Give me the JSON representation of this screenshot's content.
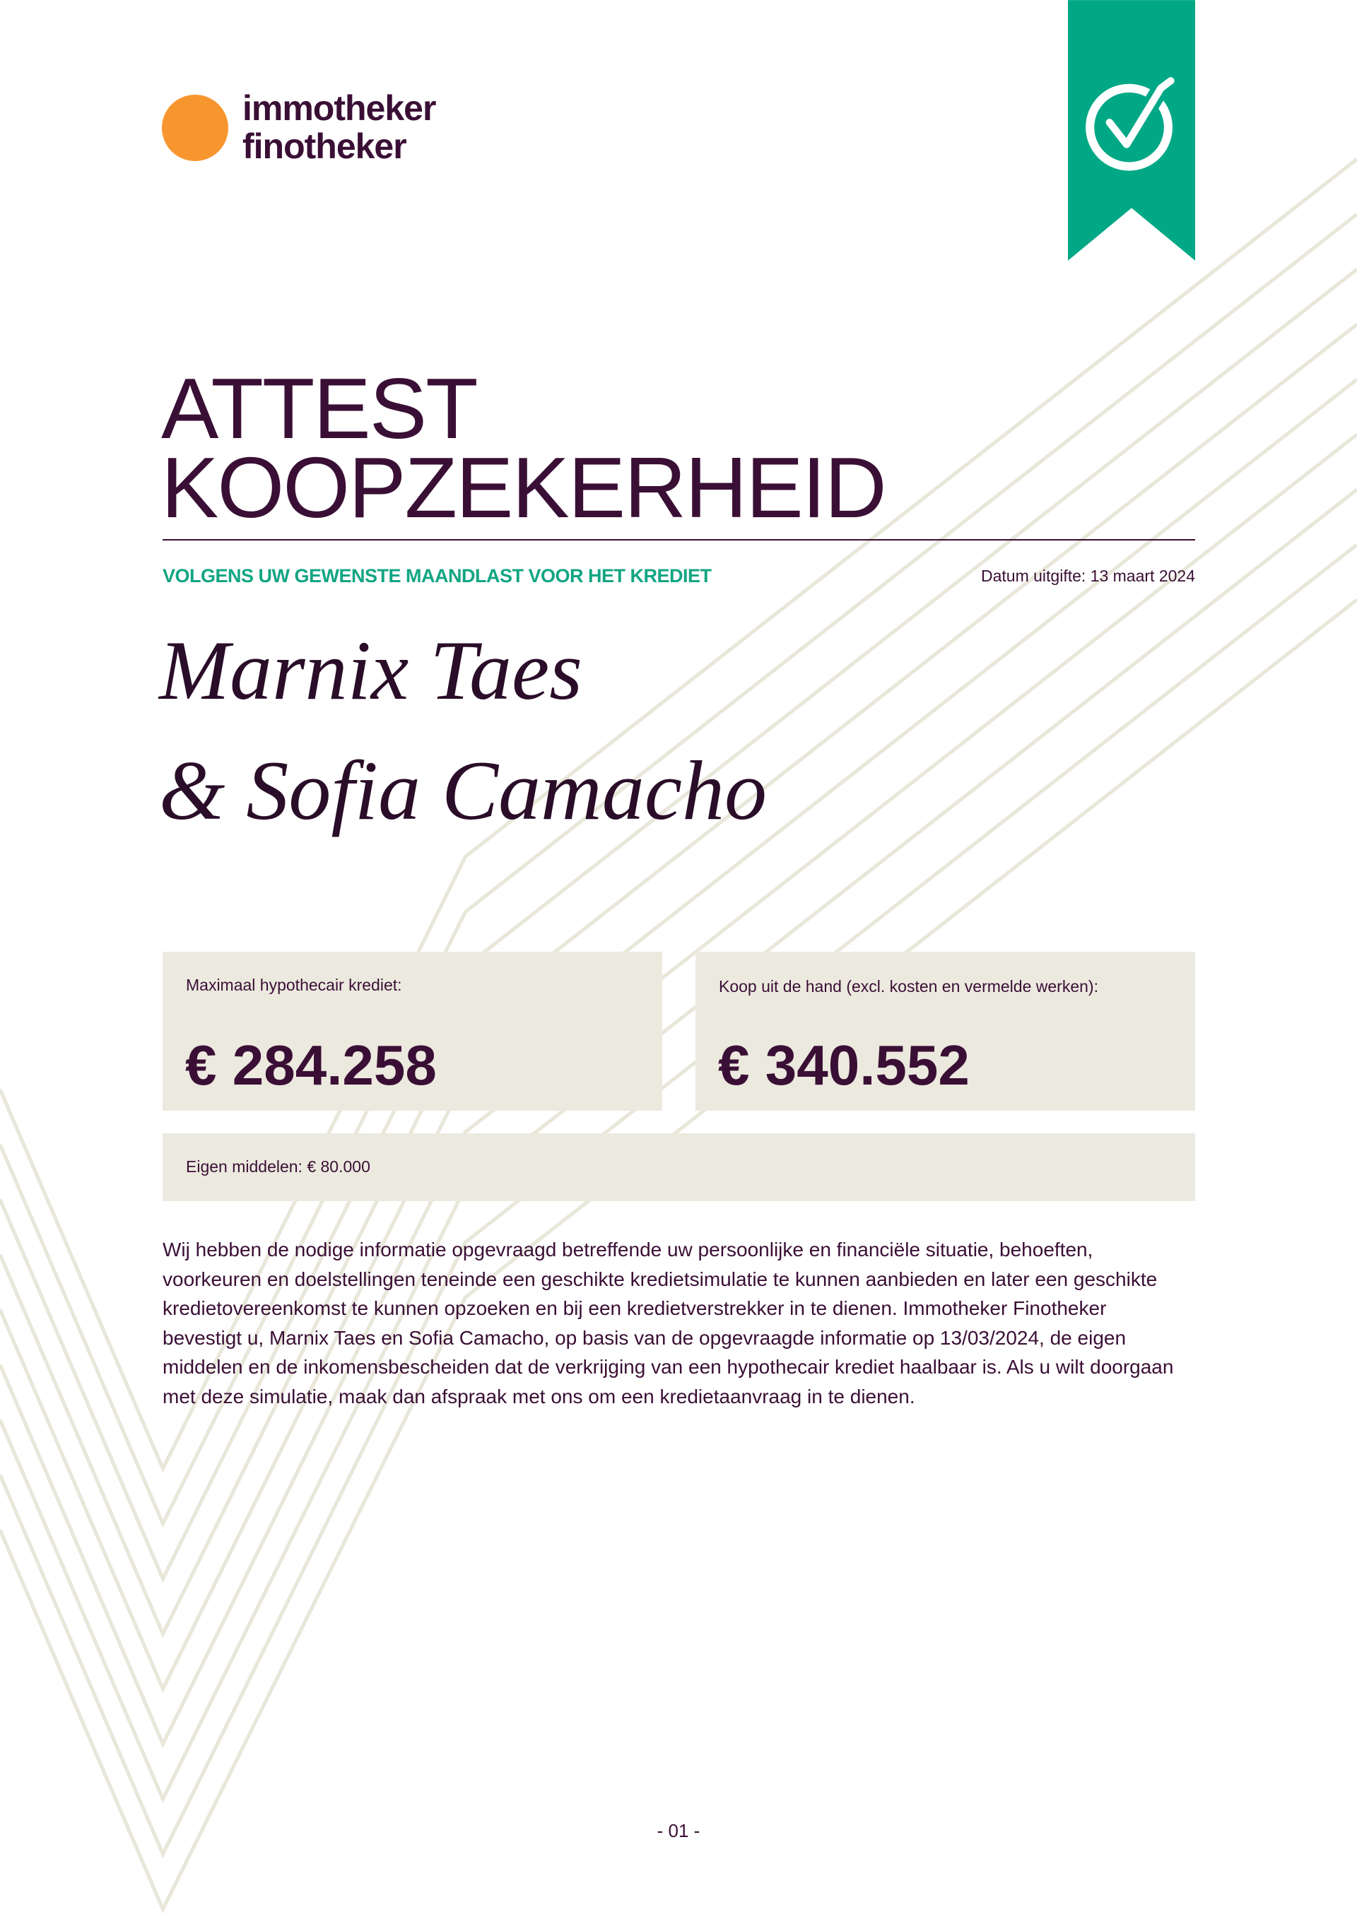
{
  "logo": {
    "line1": "immotheker",
    "line2": "finotheker",
    "circle_color": "#f7962f"
  },
  "badge": {
    "icon": "check-circle-icon",
    "color": "#00a886"
  },
  "title": {
    "line1": "ATTEST",
    "line2": "KOOPZEKERHEID"
  },
  "subtitle": "VOLGENS UW GEWENSTE MAANDLAST VOOR HET KREDIET",
  "issue_date": "Datum uitgifte: 13 maart 2024",
  "signature": {
    "line1": "Marnix Taes",
    "line2": "& Sofia Camacho"
  },
  "boxes": {
    "max_credit": {
      "label": "Maximaal hypothecair krediet:",
      "value": "€ 284.258"
    },
    "purchase": {
      "label": "Koop uit de hand (excl. kosten en vermelde werken):",
      "value": "€ 340.552"
    },
    "own_funds": {
      "label": "Eigen middelen: € 80.000"
    }
  },
  "paragraph": "Wij hebben de nodige informatie opgevraagd betreffende uw persoonlijke en financiële situatie, behoeften, voorkeuren en doelstellingen teneinde een geschikte kredietsimulatie te kunnen aanbieden en later een geschikte kredietovereenkomst te kunnen opzoeken en bij een kredietverstrekker in te dienen. Immotheker Finotheker bevestigt u, Marnix Taes en Sofia Camacho, op basis van de opgevraagde informatie op 13/03/2024, de eigen middelen en de inkomensbescheiden dat de verkrijging van een hypothecair krediet haalbaar is. Als u wilt doorgaan met deze simulatie, maak dan afspraak met ons om een kredietaanvraag in te dienen.",
  "page_number": "- 01 -",
  "colors": {
    "primary": "#3a0f35",
    "accent": "#12a583",
    "box_bg": "#ece9df"
  }
}
